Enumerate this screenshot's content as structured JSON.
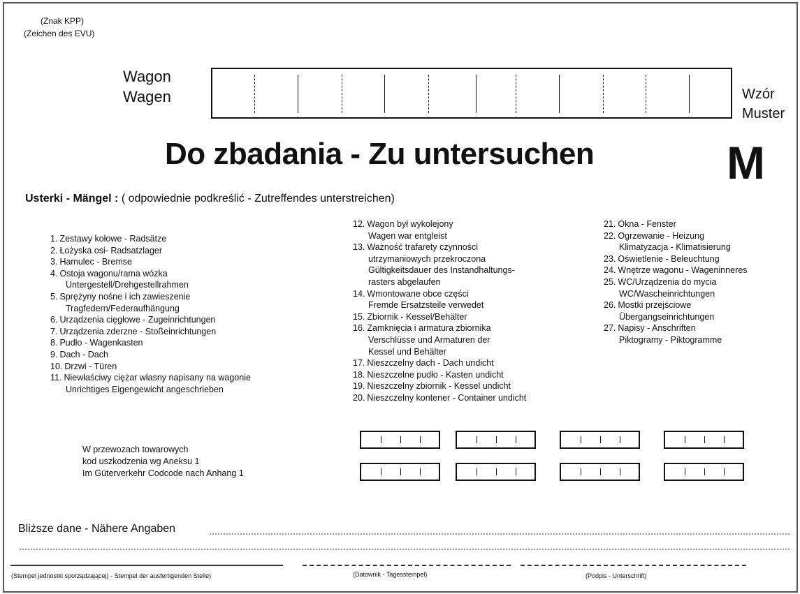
{
  "header": {
    "sign_pl": "(Znak  KPP)",
    "sign_de": "(Zeichen des EVU)"
  },
  "wagon": {
    "label_pl": "Wagon",
    "label_de": "Wagen"
  },
  "template": {
    "label_pl": "Wzór",
    "label_de": "Muster",
    "letter": "M"
  },
  "title": "Do zbadania - Zu untersuchen",
  "defects": {
    "heading_bold": "Usterki - Mängel :",
    "heading_note": "( odpowiednie podkreślić - Zutreffendes unterstreichen)",
    "col1": [
      {
        "num": "1.",
        "lines": [
          "Zestawy kołowe - Radsätze"
        ]
      },
      {
        "num": "2.",
        "lines": [
          "Łożyska osi- Radsatzlager"
        ]
      },
      {
        "num": "3.",
        "lines": [
          "Hamulec - Bremse"
        ]
      },
      {
        "num": "4.",
        "lines": [
          "Ostoja wagonu/rama wózka",
          "Untergestell/Drehgestellrahmen"
        ]
      },
      {
        "num": "5.",
        "lines": [
          "Sprężyny nośne i ich zawieszenie",
          "Tragfedern/Federaufhängung"
        ]
      },
      {
        "num": "6.",
        "lines": [
          "Urządzenia cięgłowe - Zugeinrichtungen"
        ]
      },
      {
        "num": "7.",
        "lines": [
          "Urządzenia zderzne - Stoßeinrichtungen"
        ]
      },
      {
        "num": "8.",
        "lines": [
          "Pudło - Wagenkasten"
        ]
      },
      {
        "num": "9.",
        "lines": [
          "Dach - Dach"
        ]
      },
      {
        "num": "10.",
        "lines": [
          "Drzwi - Türen"
        ]
      },
      {
        "num": "11.",
        "lines": [
          "Niewłaściwy ciężar  własny  napisany na wagonie",
          "Unrichtiges Eigengewicht angeschrieben"
        ]
      }
    ],
    "col2": [
      {
        "num": "12.",
        "lines": [
          "Wagon był wykolejony",
          "Wagen war entgleist"
        ]
      },
      {
        "num": "13.",
        "lines": [
          "Ważność trafarety czynności",
          "utrzymaniowych przekroczona",
          "Gültigkeitsdauer des Instandhaltungs-",
          "rasters abgelaufen"
        ]
      },
      {
        "num": "14.",
        "lines": [
          "Wmontowane obce części",
          "Fremde Ersatzsteile verwedet"
        ]
      },
      {
        "num": "15.",
        "lines": [
          "Zbiornik - Kessel/Behälter"
        ]
      },
      {
        "num": "16.",
        "lines": [
          "Zamknięcia i armatura zbiornika",
          "Verschlüsse und Armaturen der",
          "Kessel und Behälter"
        ]
      },
      {
        "num": "17.",
        "lines": [
          "Nieszczelny dach -  Dach undicht"
        ]
      },
      {
        "num": "18.",
        "lines": [
          "Nieszczelne pudło - Kasten undicht"
        ]
      },
      {
        "num": "19.",
        "lines": [
          "Nieszczelny zbiornik - Kessel undicht"
        ]
      },
      {
        "num": "20.",
        "lines": [
          "Nieszczelny kontener - Container undicht"
        ]
      }
    ],
    "col3": [
      {
        "num": "21.",
        "lines": [
          "Okna - Fenster"
        ]
      },
      {
        "num": "22.",
        "lines": [
          "Ogrzewanie - Heizung",
          "Klimatyzacja - Klimatisierung"
        ]
      },
      {
        "num": "23.",
        "lines": [
          "Oświetlenie - Beleuchtung"
        ]
      },
      {
        "num": "24.",
        "lines": [
          "Wnętrze wagonu - Wageninneres"
        ]
      },
      {
        "num": "25.",
        "lines": [
          "WC/Urządzenia do mycia",
          "WC/Wascheinrichtungen"
        ]
      },
      {
        "num": "26.",
        "lines": [
          "Mostki przejściowe",
          "Übergangseinrichtungen"
        ]
      },
      {
        "num": "27.",
        "lines": [
          "Napisy - Anschriften",
          "Piktogramy - Piktogramme"
        ]
      }
    ]
  },
  "codes": {
    "lines": [
      "W przewozach towarowych",
      "kod uszkodzenia wg Aneksu 1",
      "Im Güterverkehr Codcode nach Anhang 1"
    ]
  },
  "details": {
    "label": "Bliższe dane - Nähere Angaben"
  },
  "signatures": {
    "stamp": "(Stempel jednostki sporządzającej) - Stempel der ausfertigenden Stelle)",
    "date": "(Datownik - Tagesstempel)",
    "sign": "(Podpis - Unterschrift)"
  }
}
